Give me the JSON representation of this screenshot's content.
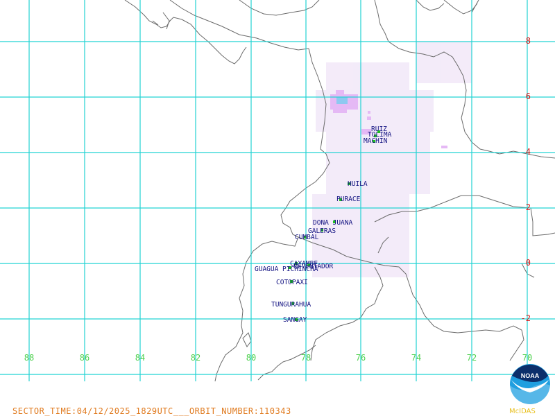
{
  "colors": {
    "grid": "#22d3d3",
    "coast": "#6b6b6b",
    "lat_label": "#d41818",
    "lon_label": "#4fd14f",
    "volcano_label": "#101080",
    "volcano_marker": "#1fbf1f",
    "footer": "#e07a1e",
    "haze": "#efe3f7",
    "blob_outer": "#e5b9f5",
    "blob_inner": "#8ec8f0"
  },
  "grid": {
    "lon_labels": [
      "88",
      "86",
      "84",
      "82",
      "80",
      "78",
      "76",
      "74",
      "72",
      "70"
    ],
    "lat_labels": [
      "8",
      "6",
      "4",
      "2",
      "0",
      "-2"
    ]
  },
  "volcanoes": [
    "RUIZ",
    "TOLIMA",
    "MACHIN",
    "HUILA",
    "PURACE",
    "DONA JUANA",
    "GALERAS",
    "CUMBAL",
    "CAYAMBE",
    "REVENTADOR",
    "GUAGUA PICHINCHA",
    "COTOPAXI",
    "TUNGURAHUA",
    "SANGAY"
  ],
  "footer": {
    "text": "SECTOR_TIME:04/12/2025_1829UTC___ORBIT_NUMBER:110343"
  },
  "logo": {
    "name": "NOAA",
    "label": "McIDAS"
  }
}
